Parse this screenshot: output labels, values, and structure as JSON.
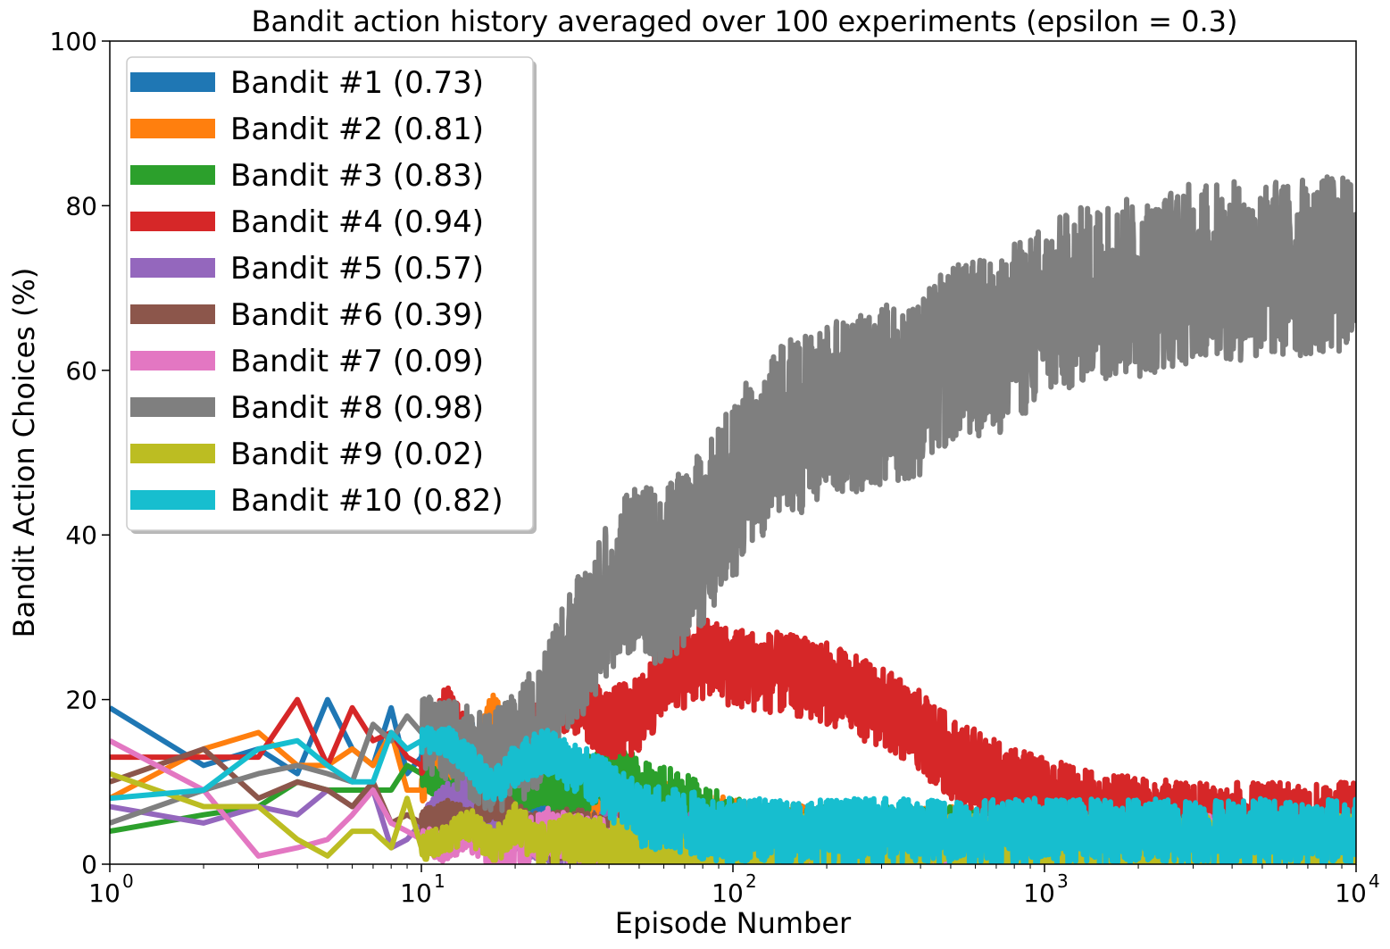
{
  "chart_data": {
    "type": "line",
    "title": "Bandit action history averaged over 100 experiments (epsilon = 0.3)",
    "xlabel": "Episode Number",
    "ylabel": "Bandit Action Choices (%)",
    "xscale": "log",
    "xlim": [
      1,
      10000
    ],
    "ylim": [
      0,
      100
    ],
    "xticks": [
      {
        "value": 1,
        "base": "10",
        "exp": "0"
      },
      {
        "value": 10,
        "base": "10",
        "exp": "1"
      },
      {
        "value": 100,
        "base": "10",
        "exp": "2"
      },
      {
        "value": 1000,
        "base": "10",
        "exp": "3"
      },
      {
        "value": 10000,
        "base": "10",
        "exp": "4"
      }
    ],
    "yticks": [
      {
        "value": 0,
        "label": "0"
      },
      {
        "value": 20,
        "label": "20"
      },
      {
        "value": 40,
        "label": "40"
      },
      {
        "value": 60,
        "label": "60"
      },
      {
        "value": 80,
        "label": "80"
      },
      {
        "value": 100,
        "label": "100"
      }
    ],
    "grid": false,
    "legend": "upper-left",
    "series": [
      {
        "name": "Bandit #1 (0.73)",
        "color": "#1f77b4",
        "x": [
          1,
          2,
          3,
          4,
          5,
          6,
          7,
          8,
          9,
          10,
          12,
          14,
          17,
          20,
          25,
          30,
          40,
          50,
          70,
          100,
          200,
          500,
          1000,
          3000,
          10000
        ],
        "y": [
          19,
          12,
          14,
          11,
          20,
          14,
          12,
          19,
          11,
          13,
          10,
          16,
          11,
          9,
          6,
          8,
          5,
          4,
          3,
          3,
          3,
          2,
          2,
          3,
          3
        ]
      },
      {
        "name": "Bandit #2 (0.81)",
        "color": "#ff7f0e",
        "x": [
          1,
          2,
          3,
          4,
          5,
          6,
          7,
          8,
          9,
          10,
          12,
          14,
          17,
          20,
          25,
          30,
          40,
          50,
          70,
          100,
          200,
          500,
          1000,
          3000,
          10000
        ],
        "y": [
          8,
          14,
          16,
          12,
          12,
          14,
          12,
          16,
          9,
          9,
          13,
          10,
          19,
          12,
          10,
          9,
          8,
          7,
          5,
          4,
          3,
          3,
          3,
          3,
          3
        ]
      },
      {
        "name": "Bandit #3 (0.83)",
        "color": "#2ca02c",
        "x": [
          1,
          2,
          3,
          4,
          5,
          6,
          7,
          8,
          9,
          10,
          12,
          14,
          17,
          20,
          25,
          30,
          40,
          50,
          70,
          100,
          200,
          500,
          1000,
          3000,
          10000
        ],
        "y": [
          4,
          6,
          7,
          10,
          9,
          9,
          9,
          9,
          12,
          11,
          9,
          8,
          6,
          9,
          10,
          8,
          12,
          9,
          7,
          4,
          3,
          3,
          3,
          3,
          3
        ]
      },
      {
        "name": "Bandit #4 (0.94)",
        "color": "#d62728",
        "x": [
          1,
          2,
          3,
          4,
          5,
          6,
          7,
          8,
          9,
          10,
          12,
          14,
          17,
          20,
          25,
          30,
          40,
          50,
          60,
          70,
          80,
          100,
          150,
          200,
          300,
          400,
          500,
          700,
          1000,
          1500,
          3000,
          10000
        ],
        "y": [
          13,
          13,
          13,
          20,
          12,
          19,
          15,
          16,
          13,
          12,
          20,
          15,
          12,
          14,
          18,
          20,
          17,
          18,
          23,
          24,
          25,
          24,
          23,
          22,
          19,
          16,
          13,
          10,
          8,
          6,
          5,
          5
        ]
      },
      {
        "name": "Bandit #5 (0.57)",
        "color": "#9467bd",
        "x": [
          1,
          2,
          3,
          4,
          5,
          6,
          7,
          8,
          9,
          10,
          12,
          14,
          17,
          20,
          25,
          30,
          40,
          50,
          70,
          100,
          200,
          500,
          1000,
          3000,
          10000
        ],
        "y": [
          7,
          5,
          7,
          6,
          9,
          7,
          9,
          2,
          3,
          5,
          8,
          9,
          6,
          4,
          3,
          2,
          3,
          3,
          3,
          2,
          2,
          2,
          2,
          2,
          2
        ]
      },
      {
        "name": "Bandit #6 (0.39)",
        "color": "#8c564b",
        "x": [
          1,
          2,
          3,
          4,
          5,
          6,
          7,
          8,
          9,
          10,
          12,
          14,
          17,
          20,
          25,
          30,
          40,
          50,
          70,
          100,
          200,
          500,
          1000,
          3000,
          10000
        ],
        "y": [
          10,
          14,
          8,
          10,
          9,
          7,
          10,
          5,
          6,
          5,
          6,
          5,
          8,
          5,
          3,
          4,
          3,
          2,
          2,
          2,
          2,
          2,
          2,
          2,
          2
        ]
      },
      {
        "name": "Bandit #7 (0.09)",
        "color": "#e377c2",
        "x": [
          1,
          2,
          3,
          4,
          5,
          6,
          7,
          8,
          9,
          10,
          12,
          14,
          17,
          20,
          25,
          30,
          40,
          50,
          70,
          100,
          200,
          500,
          1000,
          3000,
          10000
        ],
        "y": [
          15,
          9,
          1,
          2,
          3,
          6,
          9,
          5,
          4,
          3,
          2,
          4,
          1,
          2,
          4,
          3,
          2,
          3,
          2,
          2,
          2,
          2,
          2,
          2,
          2
        ]
      },
      {
        "name": "Bandit #8 (0.98)",
        "color": "#7f7f7f",
        "x": [
          1,
          2,
          3,
          4,
          5,
          6,
          7,
          8,
          9,
          10,
          12,
          14,
          17,
          20,
          25,
          30,
          35,
          40,
          50,
          60,
          70,
          80,
          100,
          120,
          150,
          200,
          300,
          400,
          500,
          700,
          1000,
          1500,
          2000,
          3000,
          5000,
          10000
        ],
        "y": [
          5,
          9,
          11,
          12,
          11,
          10,
          17,
          15,
          18,
          16,
          15,
          14,
          12,
          14,
          18,
          25,
          28,
          33,
          36,
          35,
          37,
          40,
          45,
          50,
          53,
          55,
          57,
          58,
          62,
          63,
          67,
          70,
          70,
          72,
          72,
          73
        ]
      },
      {
        "name": "Bandit #9 (0.02)",
        "color": "#bcbd22",
        "x": [
          1,
          2,
          3,
          4,
          5,
          6,
          7,
          8,
          9,
          10,
          12,
          14,
          17,
          20,
          25,
          30,
          40,
          50,
          70,
          100,
          200,
          500,
          1000,
          3000,
          10000
        ],
        "y": [
          11,
          7,
          7,
          3,
          1,
          4,
          4,
          2,
          8,
          2,
          3,
          5,
          2,
          5,
          2,
          3,
          2,
          2,
          2,
          2,
          2,
          2,
          2,
          2,
          2
        ]
      },
      {
        "name": "Bandit #10 (0.82)",
        "color": "#17becf",
        "x": [
          1,
          2,
          3,
          4,
          5,
          6,
          7,
          8,
          9,
          10,
          12,
          14,
          17,
          20,
          25,
          30,
          40,
          50,
          70,
          100,
          200,
          500,
          1000,
          3000,
          10000
        ],
        "y": [
          8,
          9,
          14,
          15,
          12,
          10,
          10,
          16,
          14,
          15,
          15,
          13,
          9,
          12,
          14,
          12,
          9,
          6,
          5,
          4,
          4,
          4,
          4,
          4,
          4
        ]
      }
    ]
  }
}
